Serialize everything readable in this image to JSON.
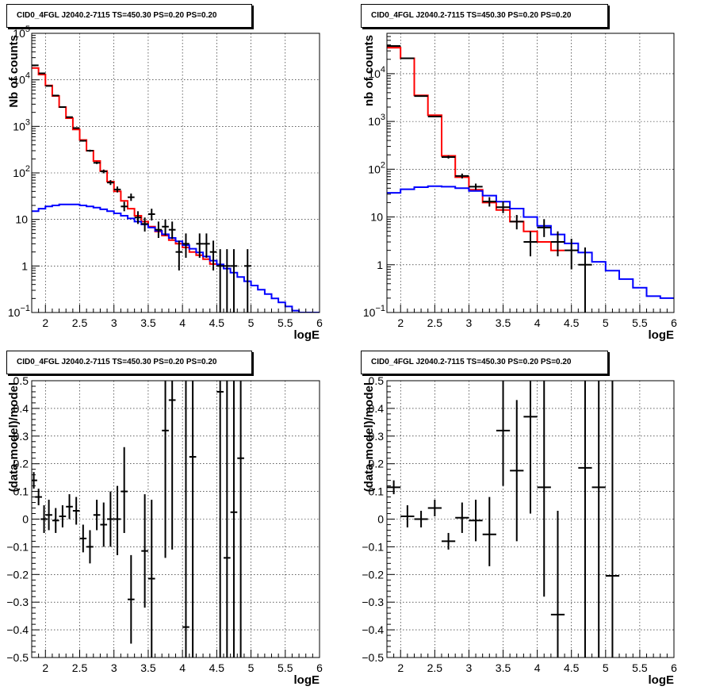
{
  "chart_data": [
    {
      "type": "line",
      "title": "CID0_4FGL J2040.2-7115 TS=450.30 PS=0.20 PS=0.20",
      "xlabel": "logE",
      "ylabel": "Nb of counts",
      "xlim": [
        1.8,
        6
      ],
      "ylim": [
        0.1,
        100000
      ],
      "yscale": "log",
      "grid": true,
      "x_ticks": [
        "2",
        "2.5",
        "3",
        "3.5",
        "4",
        "4.5",
        "5",
        "5.5",
        "6"
      ],
      "y_ticks": [
        {
          "value": 0.1,
          "base": "10",
          "exp": "−1"
        },
        {
          "value": 1,
          "base": "1",
          "exp": ""
        },
        {
          "value": 10,
          "base": "10",
          "exp": ""
        },
        {
          "value": 100,
          "base": "10",
          "exp": "2"
        },
        {
          "value": 1000,
          "base": "10",
          "exp": "3"
        },
        {
          "value": 10000,
          "base": "10",
          "exp": "4"
        },
        {
          "value": 100000,
          "base": "10",
          "exp": "5"
        }
      ],
      "series": [
        {
          "color": "#ff0000",
          "kind": "step",
          "x_start": 1.8,
          "bin_width": 0.1,
          "values": [
            18000,
            13000,
            7600,
            4500,
            2600,
            1500,
            860,
            510,
            300,
            180,
            110,
            65,
            40,
            25,
            17,
            12,
            9,
            7,
            5.5,
            4.5,
            3.6,
            3.0,
            2.5,
            2.0,
            1.7,
            1.4,
            1.1
          ]
        },
        {
          "color": "#0000ff",
          "kind": "step",
          "x_start": 1.8,
          "bin_width": 0.1,
          "values": [
            15,
            17,
            19,
            20,
            21,
            21,
            21,
            20,
            19,
            18,
            16.5,
            15,
            13.5,
            12,
            10.5,
            9,
            7.8,
            6.7,
            5.7,
            4.8,
            4.0,
            3.4,
            2.8,
            2.35,
            1.95,
            1.6,
            1.3,
            1.08,
            0.88,
            0.72,
            0.58,
            0.47,
            0.38,
            0.31,
            0.25,
            0.2,
            0.165,
            0.135,
            0.11,
            0.09,
            0.075,
            0.062
          ]
        }
      ],
      "points": [
        {
          "x": 1.85,
          "y": 20500,
          "lo": 20300,
          "hi": 20700
        },
        {
          "x": 1.95,
          "y": 13800,
          "lo": 13600,
          "hi": 14000
        },
        {
          "x": 2.05,
          "y": 7400,
          "lo": 7300,
          "hi": 7500
        },
        {
          "x": 2.15,
          "y": 4600,
          "lo": 4500,
          "hi": 4700
        },
        {
          "x": 2.25,
          "y": 2600,
          "lo": 2550,
          "hi": 2650
        },
        {
          "x": 2.35,
          "y": 1580,
          "lo": 1540,
          "hi": 1620
        },
        {
          "x": 2.45,
          "y": 920,
          "lo": 890,
          "hi": 950
        },
        {
          "x": 2.55,
          "y": 490,
          "lo": 470,
          "hi": 510
        },
        {
          "x": 2.65,
          "y": 300,
          "lo": 285,
          "hi": 315
        },
        {
          "x": 2.75,
          "y": 165,
          "lo": 155,
          "hi": 175
        },
        {
          "x": 2.85,
          "y": 108,
          "lo": 98,
          "hi": 118
        },
        {
          "x": 2.95,
          "y": 62,
          "lo": 55,
          "hi": 70
        },
        {
          "x": 3.05,
          "y": 44,
          "lo": 38,
          "hi": 51
        },
        {
          "x": 3.15,
          "y": 19,
          "lo": 15,
          "hi": 24
        },
        {
          "x": 3.25,
          "y": 30,
          "lo": 25,
          "hi": 36
        },
        {
          "x": 3.35,
          "y": 11,
          "lo": 8,
          "hi": 15
        },
        {
          "x": 3.45,
          "y": 8,
          "lo": 5.5,
          "hi": 11
        },
        {
          "x": 3.55,
          "y": 13,
          "lo": 9.5,
          "hi": 17
        },
        {
          "x": 3.65,
          "y": 6,
          "lo": 4,
          "hi": 9
        },
        {
          "x": 3.75,
          "y": 7,
          "lo": 4.5,
          "hi": 10
        },
        {
          "x": 3.85,
          "y": 6,
          "lo": 3.8,
          "hi": 9
        },
        {
          "x": 3.95,
          "y": 2,
          "lo": 0.8,
          "hi": 3.5
        },
        {
          "x": 4.05,
          "y": 3,
          "lo": 1.5,
          "hi": 5
        },
        {
          "x": 4.25,
          "y": 3,
          "lo": 1.5,
          "hi": 5
        },
        {
          "x": 4.35,
          "y": 3,
          "lo": 1.5,
          "hi": 5
        },
        {
          "x": 4.45,
          "y": 2,
          "lo": 0.8,
          "hi": 3.5
        },
        {
          "x": 4.55,
          "y": 1,
          "lo": 0.1,
          "hi": 2.3
        },
        {
          "x": 4.65,
          "y": 1,
          "lo": 0.1,
          "hi": 2.3
        },
        {
          "x": 4.75,
          "y": 1,
          "lo": 0.1,
          "hi": 2.3
        },
        {
          "x": 4.95,
          "y": 1,
          "lo": 0.1,
          "hi": 2.3
        }
      ]
    },
    {
      "type": "line",
      "title": "CID0_4FGL J2040.2-7115 TS=450.30 PS=0.20 PS=0.20",
      "xlabel": "logE",
      "ylabel": "nb of counts",
      "xlim": [
        1.8,
        6
      ],
      "ylim": [
        0.1,
        70000
      ],
      "yscale": "log",
      "grid": true,
      "x_ticks": [
        "2",
        "2.5",
        "3",
        "3.5",
        "4",
        "4.5",
        "5",
        "5.5",
        "6"
      ],
      "y_ticks": [
        {
          "value": 0.1,
          "base": "10",
          "exp": "−1"
        },
        {
          "value": 1,
          "base": "1",
          "exp": ""
        },
        {
          "value": 10,
          "base": "10",
          "exp": ""
        },
        {
          "value": 100,
          "base": "10",
          "exp": "2"
        },
        {
          "value": 1000,
          "base": "10",
          "exp": "3"
        },
        {
          "value": 10000,
          "base": "10",
          "exp": "4"
        }
      ],
      "series": [
        {
          "color": "#ff0000",
          "kind": "step",
          "x_start": 1.8,
          "bin_width": 0.2,
          "values": [
            35000,
            21000,
            3500,
            1350,
            190,
            68,
            37,
            20,
            14,
            8,
            5,
            3,
            2
          ]
        },
        {
          "color": "#0000ff",
          "kind": "step",
          "x_start": 1.8,
          "bin_width": 0.2,
          "values": [
            32,
            38,
            42,
            44,
            43,
            40,
            35,
            28,
            21,
            15,
            10,
            6.5,
            4.3,
            2.8,
            1.8,
            1.15,
            0.75,
            0.5,
            0.33,
            0.22,
            0.2
          ]
        }
      ],
      "points": [
        {
          "x": 1.9,
          "y": 38000,
          "lo": 37600,
          "hi": 38400
        },
        {
          "x": 2.1,
          "y": 21000,
          "lo": 20700,
          "hi": 21300
        },
        {
          "x": 2.3,
          "y": 3400,
          "lo": 3300,
          "hi": 3500
        },
        {
          "x": 2.5,
          "y": 1270,
          "lo": 1230,
          "hi": 1310
        },
        {
          "x": 2.7,
          "y": 180,
          "lo": 167,
          "hi": 193
        },
        {
          "x": 2.9,
          "y": 72,
          "lo": 64,
          "hi": 81
        },
        {
          "x": 3.1,
          "y": 43,
          "lo": 37,
          "hi": 50
        },
        {
          "x": 3.3,
          "y": 21,
          "lo": 16.5,
          "hi": 26
        },
        {
          "x": 3.5,
          "y": 16,
          "lo": 12,
          "hi": 21
        },
        {
          "x": 3.7,
          "y": 8,
          "lo": 5.5,
          "hi": 11
        },
        {
          "x": 3.9,
          "y": 3,
          "lo": 1.5,
          "hi": 5
        },
        {
          "x": 4.1,
          "y": 6,
          "lo": 3.8,
          "hi": 9
        },
        {
          "x": 4.3,
          "y": 3,
          "lo": 1.5,
          "hi": 5
        },
        {
          "x": 4.5,
          "y": 2,
          "lo": 0.8,
          "hi": 3.5
        },
        {
          "x": 4.7,
          "y": 1,
          "lo": 0.1,
          "hi": 2.3
        }
      ]
    },
    {
      "type": "scatter",
      "title": "CID0_4FGL J2040.2-7115 TS=450.30 PS=0.20 PS=0.20",
      "xlabel": "logE",
      "ylabel": "(data-model)/model",
      "xlim": [
        1.8,
        6
      ],
      "ylim": [
        -0.5,
        0.5
      ],
      "yscale": "linear",
      "grid": true,
      "x_ticks": [
        "2",
        "2.5",
        "3",
        "3.5",
        "4",
        "4.5",
        "5",
        "5.5",
        "6"
      ],
      "y_ticks": [
        {
          "value": -0.5,
          "label": "−0.5"
        },
        {
          "value": -0.4,
          "label": "−0.4"
        },
        {
          "value": -0.3,
          "label": "−0.3"
        },
        {
          "value": -0.2,
          "label": "−0.2"
        },
        {
          "value": -0.1,
          "label": "−0.1"
        },
        {
          "value": 0,
          "label": "0"
        },
        {
          "value": 0.1,
          "label": "0.1"
        },
        {
          "value": 0.2,
          "label": "0.2"
        },
        {
          "value": 0.3,
          "label": "0.3"
        },
        {
          "value": 0.4,
          "label": "0.4"
        },
        {
          "value": 0.5,
          "label": "0.5"
        }
      ],
      "points": [
        {
          "x": 1.83,
          "y": 0.14,
          "lo": 0.11,
          "hi": 0.17
        },
        {
          "x": 1.9,
          "y": 0.08,
          "lo": 0.05,
          "hi": 0.11
        },
        {
          "x": 1.98,
          "y": 0.0,
          "lo": -0.05,
          "hi": 0.05
        },
        {
          "x": 2.05,
          "y": 0.015,
          "lo": -0.04,
          "hi": 0.07
        },
        {
          "x": 2.15,
          "y": -0.005,
          "lo": -0.05,
          "hi": 0.04
        },
        {
          "x": 2.25,
          "y": 0.01,
          "lo": -0.03,
          "hi": 0.05
        },
        {
          "x": 2.35,
          "y": 0.045,
          "lo": 0.0,
          "hi": 0.09
        },
        {
          "x": 2.45,
          "y": 0.03,
          "lo": -0.02,
          "hi": 0.08
        },
        {
          "x": 2.55,
          "y": -0.07,
          "lo": -0.12,
          "hi": -0.02
        },
        {
          "x": 2.65,
          "y": -0.1,
          "lo": -0.16,
          "hi": -0.04
        },
        {
          "x": 2.75,
          "y": 0.015,
          "lo": -0.04,
          "hi": 0.07
        },
        {
          "x": 2.85,
          "y": -0.02,
          "lo": -0.1,
          "hi": 0.06
        },
        {
          "x": 2.95,
          "y": 0.0,
          "lo": -0.1,
          "hi": 0.1
        },
        {
          "x": 3.05,
          "y": 0.0,
          "lo": -0.13,
          "hi": 0.12
        },
        {
          "x": 3.15,
          "y": 0.1,
          "lo": -0.05,
          "hi": 0.26
        },
        {
          "x": 3.25,
          "y": -0.29,
          "lo": -0.45,
          "hi": -0.13
        },
        {
          "x": 3.45,
          "y": -0.115,
          "lo": -0.32,
          "hi": 0.09
        },
        {
          "x": 3.55,
          "y": -0.215,
          "lo": -0.5,
          "hi": 0.07
        },
        {
          "x": 3.75,
          "y": 0.32,
          "lo": -0.14,
          "hi": 0.8
        },
        {
          "x": 3.85,
          "y": 0.43,
          "lo": -0.11,
          "hi": 1.0
        },
        {
          "x": 4.05,
          "y": -0.39,
          "lo": -0.6,
          "hi": 0.5
        },
        {
          "x": 4.15,
          "y": 0.225,
          "lo": -0.6,
          "hi": 1.0
        },
        {
          "x": 4.55,
          "y": 0.46,
          "lo": -0.6,
          "hi": 1.0
        },
        {
          "x": 4.65,
          "y": -0.14,
          "lo": -0.6,
          "hi": 1.0
        },
        {
          "x": 4.75,
          "y": 0.025,
          "lo": -0.6,
          "hi": 1.0
        },
        {
          "x": 4.85,
          "y": 0.22,
          "lo": -0.6,
          "hi": 1.0
        }
      ]
    },
    {
      "type": "scatter",
      "title": "CID0_4FGL J2040.2-7115 TS=450.30 PS=0.20 PS=0.20",
      "xlabel": "logE",
      "ylabel": "(data-model)/model",
      "xlim": [
        1.8,
        6
      ],
      "ylim": [
        -0.5,
        0.5
      ],
      "yscale": "linear",
      "grid": true,
      "x_ticks": [
        "2",
        "2.5",
        "3",
        "3.5",
        "4",
        "4.5",
        "5",
        "5.5",
        "6"
      ],
      "y_ticks": [
        {
          "value": -0.5,
          "label": "−0.5"
        },
        {
          "value": -0.4,
          "label": "−0.4"
        },
        {
          "value": -0.3,
          "label": "−0.3"
        },
        {
          "value": -0.2,
          "label": "−0.2"
        },
        {
          "value": -0.1,
          "label": "−0.1"
        },
        {
          "value": 0,
          "label": "0"
        },
        {
          "value": 0.1,
          "label": "0.1"
        },
        {
          "value": 0.2,
          "label": "0.2"
        },
        {
          "value": 0.3,
          "label": "0.3"
        },
        {
          "value": 0.4,
          "label": "0.4"
        },
        {
          "value": 0.5,
          "label": "0.5"
        }
      ],
      "points": [
        {
          "x": 1.9,
          "y": 0.115,
          "lo": 0.09,
          "hi": 0.14
        },
        {
          "x": 2.1,
          "y": 0.01,
          "lo": -0.03,
          "hi": 0.05
        },
        {
          "x": 2.3,
          "y": 0.0,
          "lo": -0.03,
          "hi": 0.03
        },
        {
          "x": 2.5,
          "y": 0.04,
          "lo": 0.01,
          "hi": 0.07
        },
        {
          "x": 2.7,
          "y": -0.08,
          "lo": -0.11,
          "hi": -0.05
        },
        {
          "x": 2.9,
          "y": 0.005,
          "lo": -0.05,
          "hi": 0.06
        },
        {
          "x": 3.1,
          "y": -0.005,
          "lo": -0.08,
          "hi": 0.07
        },
        {
          "x": 3.3,
          "y": -0.055,
          "lo": -0.17,
          "hi": 0.08
        },
        {
          "x": 3.5,
          "y": 0.32,
          "lo": 0.12,
          "hi": 0.5
        },
        {
          "x": 3.7,
          "y": 0.175,
          "lo": -0.08,
          "hi": 0.43
        },
        {
          "x": 3.9,
          "y": 0.37,
          "lo": 0.02,
          "hi": 0.72
        },
        {
          "x": 4.1,
          "y": 0.115,
          "lo": -0.28,
          "hi": 0.5
        },
        {
          "x": 4.3,
          "y": -0.345,
          "lo": -0.7,
          "hi": 0.03
        },
        {
          "x": 4.7,
          "y": 0.185,
          "lo": -0.6,
          "hi": 1.0
        },
        {
          "x": 4.9,
          "y": 0.115,
          "lo": -0.6,
          "hi": 1.0
        },
        {
          "x": 5.1,
          "y": -0.205,
          "lo": -0.6,
          "hi": 0.9
        }
      ]
    }
  ]
}
